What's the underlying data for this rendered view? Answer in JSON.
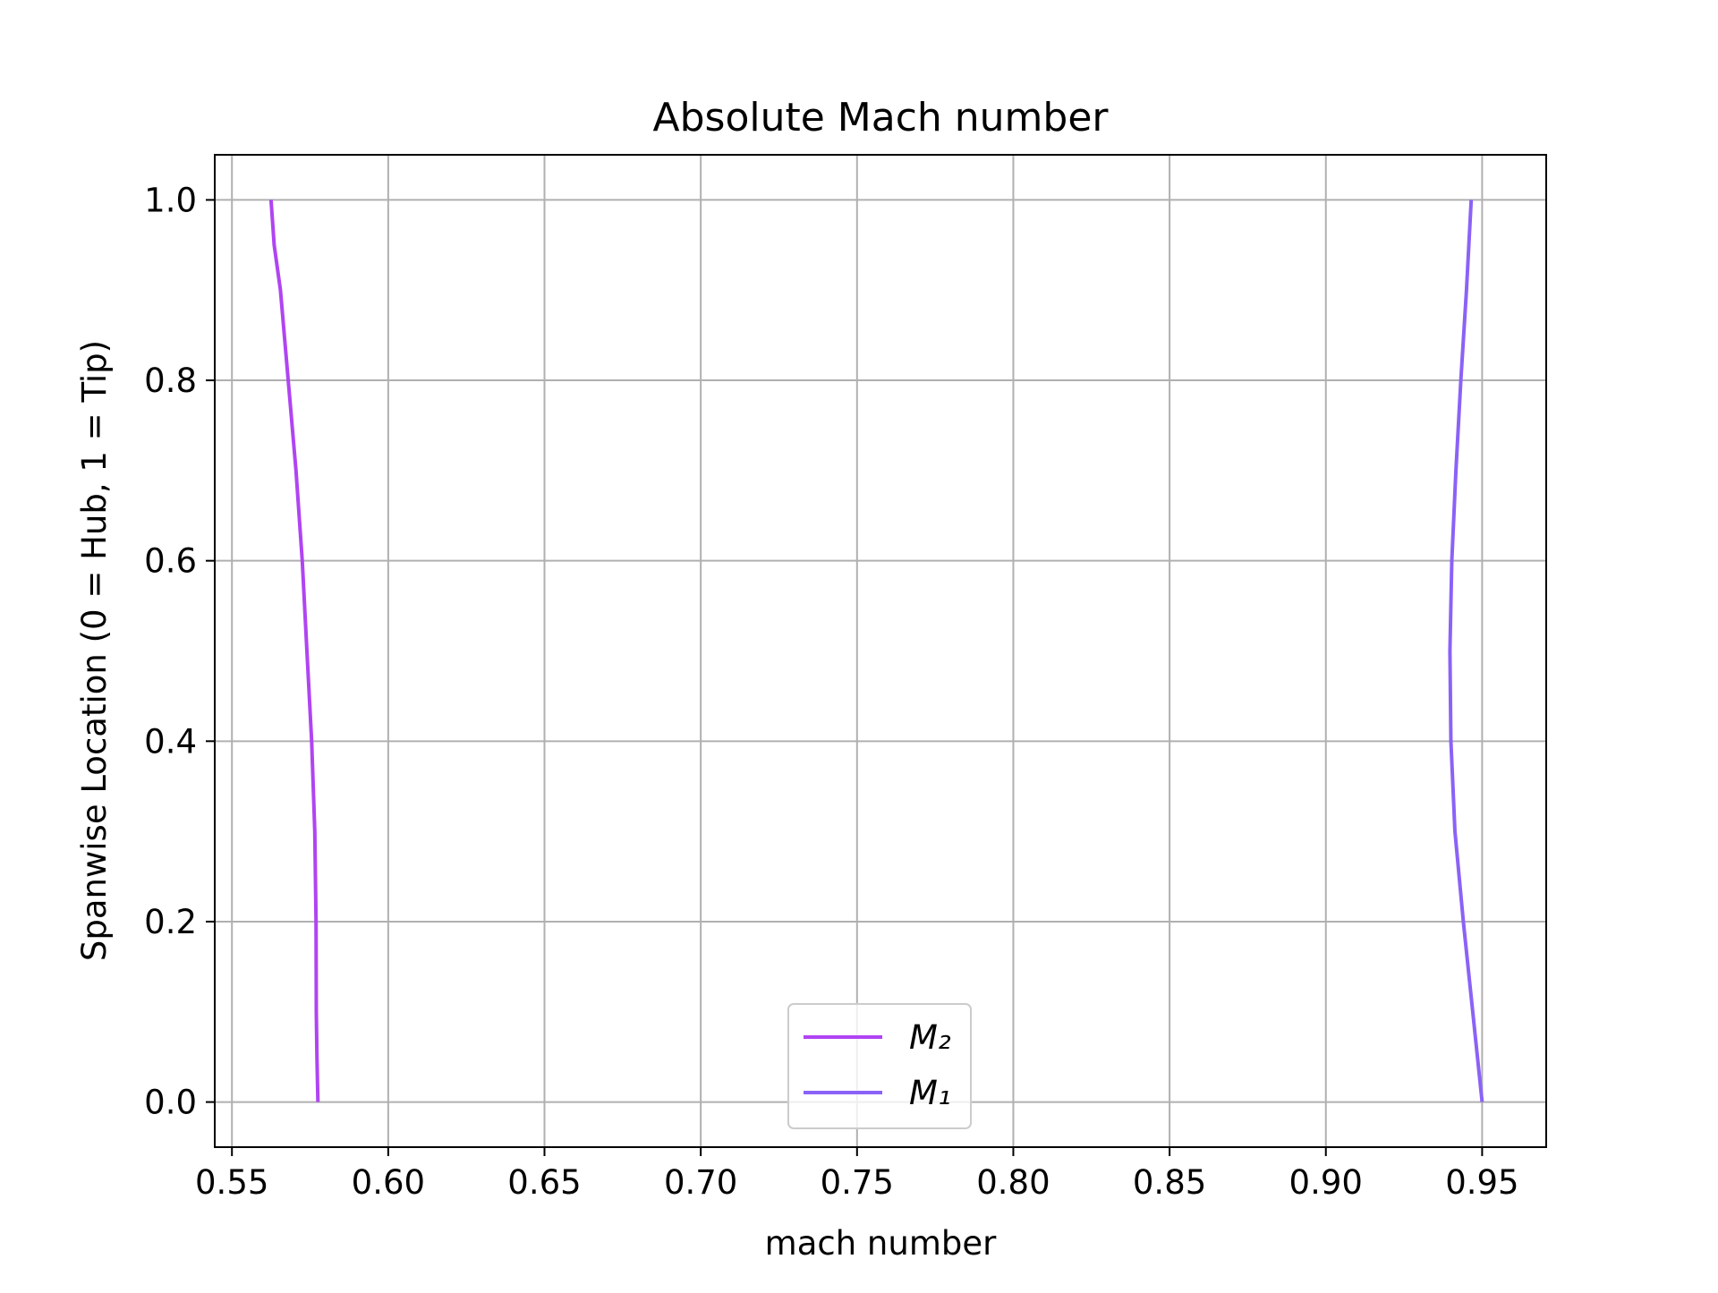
{
  "chart_data": {
    "type": "line",
    "title": "Absolute Mach number",
    "xlabel": "mach number",
    "ylabel": "Spanwise Location (0 = Hub, 1 = Tip)",
    "xlim": [
      0.5445,
      0.9705
    ],
    "ylim": [
      -0.05,
      1.05
    ],
    "xticks": [
      0.55,
      0.6,
      0.65,
      0.7,
      0.75,
      0.8,
      0.85,
      0.9,
      0.95
    ],
    "xtick_labels": [
      "0.55",
      "0.60",
      "0.65",
      "0.70",
      "0.75",
      "0.80",
      "0.85",
      "0.90",
      "0.95"
    ],
    "yticks": [
      0.0,
      0.2,
      0.4,
      0.6,
      0.8,
      1.0
    ],
    "ytick_labels": [
      "0.0",
      "0.2",
      "0.4",
      "0.6",
      "0.8",
      "1.0"
    ],
    "grid": true,
    "legend_position": "lower center",
    "series": [
      {
        "name": "M₂",
        "color": "#b044f2",
        "points": [
          [
            0.5775,
            0.0
          ],
          [
            0.5772,
            0.05
          ],
          [
            0.577,
            0.1
          ],
          [
            0.5769,
            0.2
          ],
          [
            0.5765,
            0.3
          ],
          [
            0.5755,
            0.4
          ],
          [
            0.574,
            0.5
          ],
          [
            0.5725,
            0.6
          ],
          [
            0.5705,
            0.7
          ],
          [
            0.568,
            0.8
          ],
          [
            0.5655,
            0.9
          ],
          [
            0.5635,
            0.95
          ],
          [
            0.5625,
            1.0
          ]
        ]
      },
      {
        "name": "M₁",
        "color": "#8b62f7",
        "points": [
          [
            0.95,
            0.0
          ],
          [
            0.947,
            0.1
          ],
          [
            0.944,
            0.2
          ],
          [
            0.9413,
            0.3
          ],
          [
            0.94,
            0.4
          ],
          [
            0.9397,
            0.5
          ],
          [
            0.9403,
            0.6
          ],
          [
            0.9416,
            0.7
          ],
          [
            0.9432,
            0.8
          ],
          [
            0.945,
            0.9
          ],
          [
            0.9465,
            1.0
          ]
        ]
      }
    ]
  }
}
